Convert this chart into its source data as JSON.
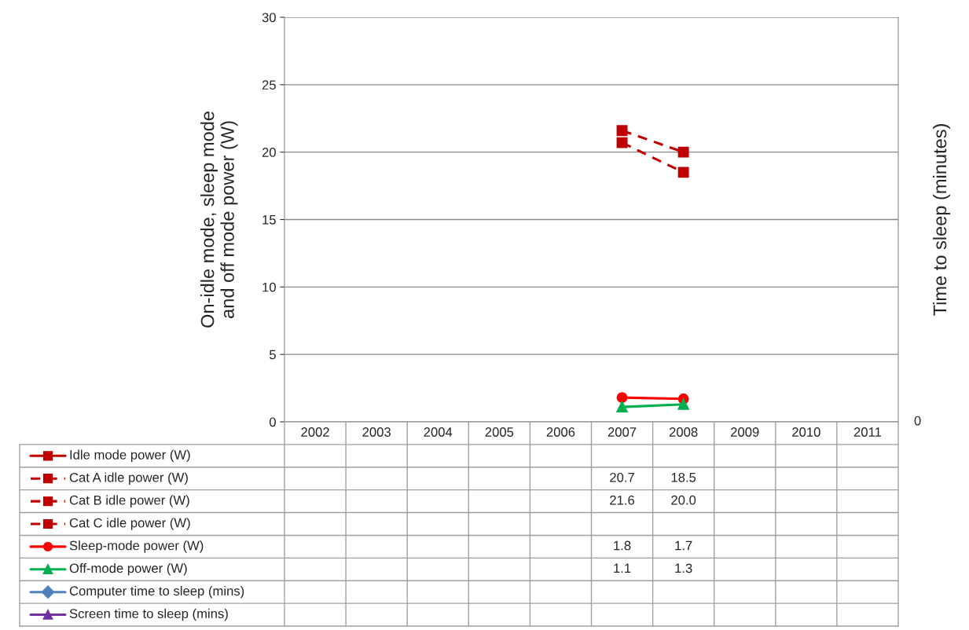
{
  "chart_data": {
    "type": "line",
    "ylabel": "On-idle mode, sleep mode\nand off mode power (W)",
    "annotations": [
      "Time to sleep (minutes)",
      "0"
    ],
    "categories": [
      "2002",
      "2003",
      "2004",
      "2005",
      "2006",
      "2007",
      "2008",
      "2009",
      "2010",
      "2011"
    ],
    "ylim": [
      0,
      30
    ],
    "yticks": [
      0,
      5,
      10,
      15,
      20,
      25,
      30
    ],
    "grid": "y",
    "legend": "bottom",
    "series": [
      {
        "name": "Idle mode power (W)",
        "color": "#c00000",
        "marker": "square",
        "line_style": "solid",
        "values": [
          null,
          null,
          null,
          null,
          null,
          null,
          null,
          null,
          null,
          null
        ],
        "value_labels": [
          null,
          null,
          null,
          null,
          null,
          null,
          null,
          null,
          null,
          null
        ]
      },
      {
        "name": "Cat A idle power (W)",
        "color": "#c00000",
        "marker": "square",
        "line_style": "dashed",
        "values": [
          null,
          null,
          null,
          null,
          null,
          20.7,
          18.5,
          null,
          null,
          null
        ],
        "value_labels": [
          null,
          null,
          null,
          null,
          null,
          "20.7",
          "18.5",
          null,
          null,
          null
        ]
      },
      {
        "name": "Cat B idle power (W)",
        "color": "#c00000",
        "marker": "square",
        "line_style": "dashed",
        "values": [
          null,
          null,
          null,
          null,
          null,
          21.6,
          20.0,
          null,
          null,
          null
        ],
        "value_labels": [
          null,
          null,
          null,
          null,
          null,
          "21.6",
          "20.0",
          null,
          null,
          null
        ]
      },
      {
        "name": "Cat C idle power (W)",
        "color": "#c00000",
        "marker": "square",
        "line_style": "dashed",
        "values": [
          null,
          null,
          null,
          null,
          null,
          null,
          null,
          null,
          null,
          null
        ],
        "value_labels": [
          null,
          null,
          null,
          null,
          null,
          null,
          null,
          null,
          null,
          null
        ]
      },
      {
        "name": "Sleep-mode power (W)",
        "color": "#ff0000",
        "marker": "circle",
        "line_style": "solid",
        "values": [
          null,
          null,
          null,
          null,
          null,
          1.8,
          1.7,
          null,
          null,
          null
        ],
        "value_labels": [
          null,
          null,
          null,
          null,
          null,
          "1.8",
          "1.7",
          null,
          null,
          null
        ]
      },
      {
        "name": "Off-mode power (W)",
        "color": "#00b050",
        "marker": "triangle",
        "line_style": "solid",
        "values": [
          null,
          null,
          null,
          null,
          null,
          1.1,
          1.3,
          null,
          null,
          null
        ],
        "value_labels": [
          null,
          null,
          null,
          null,
          null,
          "1.1",
          "1.3",
          null,
          null,
          null
        ]
      },
      {
        "name": "Computer time to sleep (mins)",
        "color": "#4f81bd",
        "marker": "diamond",
        "line_style": "solid",
        "values": [
          null,
          null,
          null,
          null,
          null,
          null,
          null,
          null,
          null,
          null
        ],
        "value_labels": [
          null,
          null,
          null,
          null,
          null,
          null,
          null,
          null,
          null,
          null
        ]
      },
      {
        "name": "Screen time to sleep (mins)",
        "color": "#7030a0",
        "marker": "triangle",
        "line_style": "solid",
        "values": [
          null,
          null,
          null,
          null,
          null,
          null,
          null,
          null,
          null,
          null
        ],
        "value_labels": [
          null,
          null,
          null,
          null,
          null,
          null,
          null,
          null,
          null,
          null
        ]
      }
    ]
  }
}
